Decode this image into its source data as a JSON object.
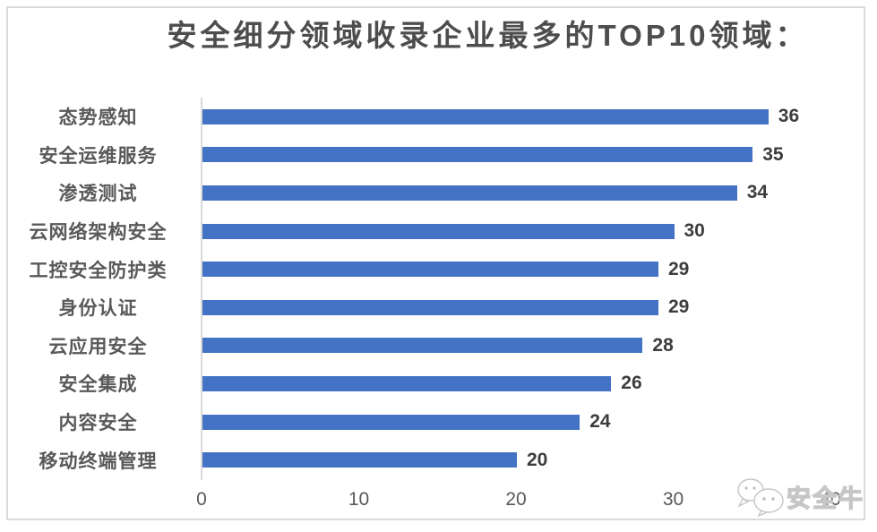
{
  "chart_data": {
    "type": "bar",
    "orientation": "horizontal",
    "title": "安全细分领域收录企业最多的TOP10领域：",
    "categories": [
      "态势感知",
      "安全运维服务",
      "渗透测试",
      "云网络架构安全",
      "工控安全防护类",
      "身份认证",
      "云应用安全",
      "安全集成",
      "内容安全",
      "移动终端管理"
    ],
    "values": [
      36,
      35,
      34,
      30,
      29,
      29,
      28,
      26,
      24,
      20
    ],
    "xlabel": "",
    "ylabel": "",
    "xlim": [
      0,
      40
    ],
    "x_ticks": [
      "0",
      "10",
      "20",
      "30",
      "40"
    ],
    "grid": false,
    "legend": false,
    "data_labels": true,
    "colors": {
      "bar": "#4472C4",
      "title": "#4D4D4D",
      "category_label": "#595959",
      "value_label": "#3D3D3D",
      "axis_line": "#D9D9D9",
      "frame_border": "#DBDBDB"
    }
  },
  "watermark": {
    "icon": "wechat-speech-bubbles-icon",
    "text": "安全牛"
  }
}
